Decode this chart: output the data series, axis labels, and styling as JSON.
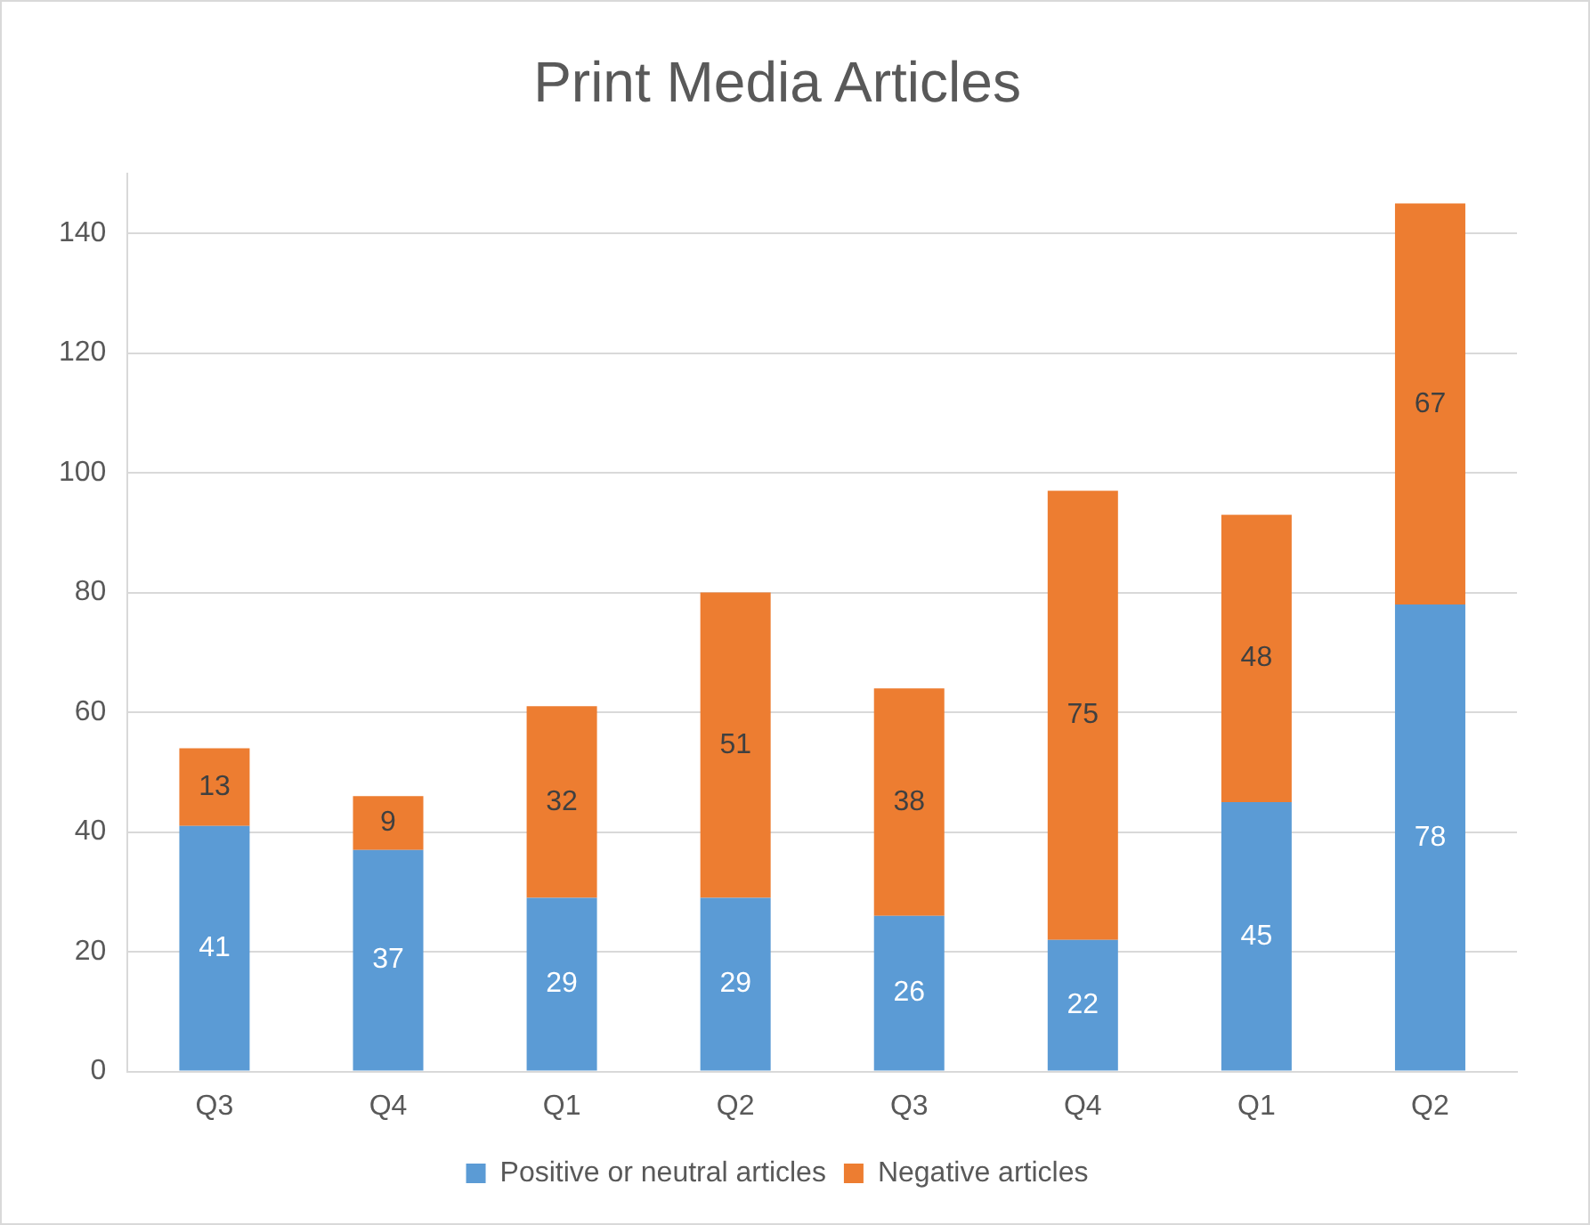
{
  "chart_data": {
    "type": "bar",
    "title": "Print Media Articles",
    "categories": [
      "Q3",
      "Q4",
      "Q1",
      "Q2",
      "Q3",
      "Q4",
      "Q1",
      "Q2"
    ],
    "series": [
      {
        "name": "Positive or neutral articles",
        "color": "#5b9bd5",
        "values": [
          41,
          37,
          29,
          29,
          26,
          22,
          45,
          78
        ]
      },
      {
        "name": "Negative articles",
        "color": "#ed7d31",
        "values": [
          13,
          9,
          32,
          51,
          38,
          75,
          48,
          67
        ]
      }
    ],
    "stacked": true,
    "ylim": [
      0,
      150
    ],
    "yticks": [
      0,
      20,
      40,
      60,
      80,
      100,
      120,
      140
    ],
    "grid": "y",
    "legend": "bottom",
    "data_labels": true
  }
}
